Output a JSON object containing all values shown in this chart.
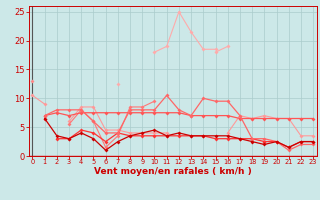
{
  "xlabel": "Vent moyen/en rafales ( km/h )",
  "bg_color": "#cce8e8",
  "grid_color": "#aacccc",
  "series": [
    {
      "color": "#ffaaaa",
      "alpha": 1.0,
      "lw": 0.8,
      "values": [
        null,
        null,
        null,
        null,
        null,
        null,
        null,
        12.5,
        null,
        null,
        18.0,
        19.0,
        25.0,
        21.5,
        18.5,
        18.5,
        null,
        null,
        null,
        null,
        null,
        null,
        null,
        null
      ]
    },
    {
      "color": "#ffaaaa",
      "alpha": 1.0,
      "lw": 0.8,
      "values": [
        null,
        null,
        null,
        null,
        null,
        null,
        null,
        null,
        null,
        null,
        null,
        null,
        null,
        null,
        null,
        18.0,
        19.0,
        null,
        null,
        null,
        null,
        null,
        null,
        null
      ]
    },
    {
      "color": "#ff8888",
      "alpha": 1.0,
      "lw": 0.8,
      "values": [
        13.0,
        null,
        null,
        null,
        null,
        null,
        null,
        null,
        null,
        null,
        null,
        null,
        null,
        null,
        null,
        null,
        null,
        null,
        null,
        null,
        null,
        null,
        null,
        null
      ]
    },
    {
      "color": "#ff9999",
      "alpha": 1.0,
      "lw": 0.8,
      "values": [
        10.5,
        9.0,
        null,
        6.0,
        8.5,
        8.5,
        4.5,
        4.5,
        4.0,
        4.0,
        4.0,
        4.0,
        null,
        null,
        null,
        null,
        4.0,
        7.0,
        6.5,
        7.0,
        6.5,
        6.5,
        3.5,
        3.5
      ]
    },
    {
      "color": "#ff7777",
      "alpha": 1.0,
      "lw": 0.8,
      "values": [
        null,
        6.5,
        null,
        5.5,
        8.0,
        6.0,
        1.5,
        3.5,
        8.5,
        8.5,
        9.5,
        null,
        null,
        null,
        null,
        null,
        null,
        null,
        null,
        null,
        null,
        null,
        null,
        null
      ]
    },
    {
      "color": "#ff5555",
      "alpha": 1.0,
      "lw": 0.9,
      "values": [
        null,
        7.0,
        7.5,
        7.0,
        7.5,
        7.5,
        7.5,
        7.5,
        7.5,
        7.5,
        7.5,
        7.5,
        7.5,
        7.0,
        7.0,
        7.0,
        7.0,
        6.5,
        6.5,
        6.5,
        6.5,
        6.5,
        6.5,
        6.5
      ]
    },
    {
      "color": "#ff3333",
      "alpha": 1.0,
      "lw": 0.9,
      "values": [
        null,
        null,
        3.0,
        3.0,
        4.5,
        4.0,
        2.5,
        4.0,
        3.5,
        3.5,
        3.5,
        3.5,
        3.5,
        3.5,
        3.5,
        3.0,
        3.0,
        3.0,
        3.0,
        2.5,
        2.5,
        1.5,
        2.5,
        2.5
      ]
    },
    {
      "color": "#ff6666",
      "alpha": 1.0,
      "lw": 0.9,
      "values": [
        null,
        7.0,
        8.0,
        8.0,
        8.0,
        6.0,
        4.0,
        4.0,
        8.0,
        8.0,
        8.0,
        10.5,
        8.0,
        7.0,
        10.0,
        9.5,
        9.5,
        7.0,
        3.0,
        3.0,
        2.5,
        1.0,
        2.0,
        2.0
      ]
    },
    {
      "color": "#cc0000",
      "alpha": 1.0,
      "lw": 0.9,
      "values": [
        null,
        6.5,
        3.5,
        3.0,
        4.0,
        3.0,
        1.0,
        2.5,
        3.5,
        4.0,
        4.5,
        3.5,
        4.0,
        3.5,
        3.5,
        3.5,
        3.5,
        3.0,
        2.5,
        2.0,
        2.5,
        1.5,
        2.5,
        2.5
      ]
    }
  ],
  "xlim": [
    0,
    23
  ],
  "ylim": [
    0,
    26
  ],
  "yticks": [
    0,
    5,
    10,
    15,
    20,
    25
  ],
  "xticks": [
    0,
    1,
    2,
    3,
    4,
    5,
    6,
    7,
    8,
    9,
    10,
    11,
    12,
    13,
    14,
    15,
    16,
    17,
    18,
    19,
    20,
    21,
    22,
    23
  ],
  "xlabel_color": "#cc0000",
  "tick_color": "#cc0000",
  "spine_color": "#cc0000",
  "red_line_color": "#dd0000"
}
